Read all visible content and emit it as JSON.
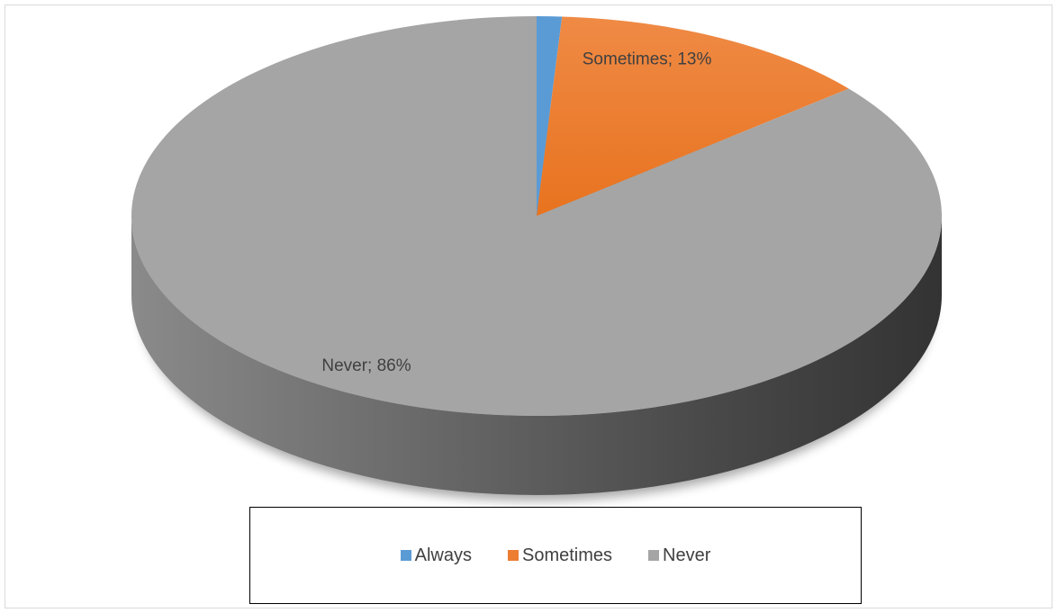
{
  "chart_data": {
    "type": "pie",
    "style": "3d",
    "title": "",
    "slices": [
      {
        "name": "Always",
        "value": 1,
        "label": "",
        "color": "#5b9bd5"
      },
      {
        "name": "Sometimes",
        "value": 13,
        "label": "Sometimes; 13%",
        "color": "#ed7d31"
      },
      {
        "name": "Never",
        "value": 86,
        "label": "Never; 86%",
        "color": "#a5a5a5"
      }
    ],
    "legend": {
      "placement": "bottom",
      "entries": [
        "Always",
        "Sometimes",
        "Never"
      ]
    }
  }
}
